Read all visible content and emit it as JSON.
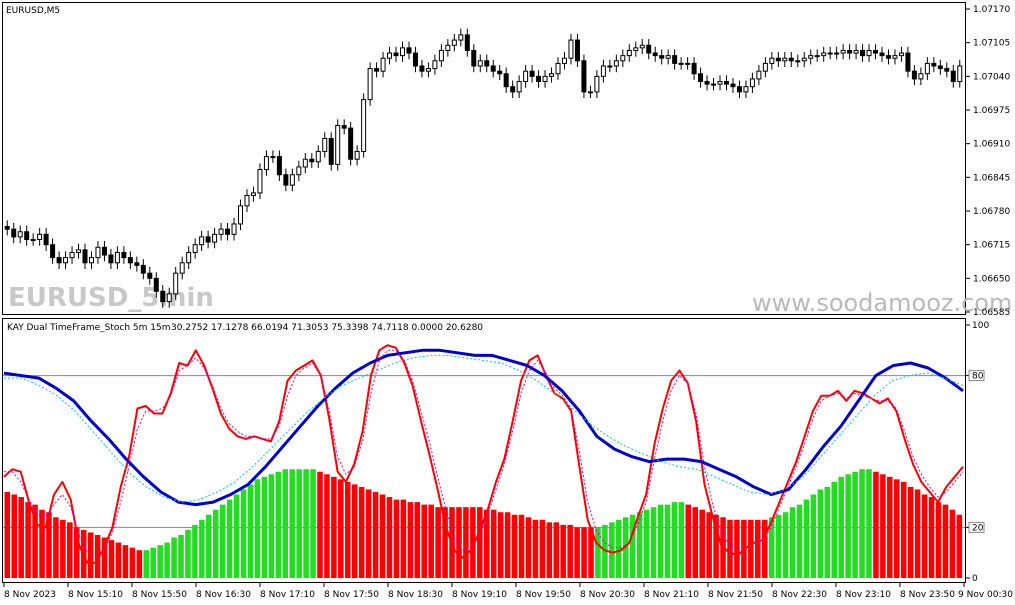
{
  "chart_data": [
    {
      "type": "candlestick",
      "symbol": "EURUSD,M5",
      "watermark": "EURUSD_5min",
      "site_watermark": "www.soodamooz.com",
      "y_ticks": [
        "1.07170",
        "1.07105",
        "1.07040",
        "1.06975",
        "1.06910",
        "1.06845",
        "1.06780",
        "1.06715",
        "1.06650",
        "1.06585"
      ],
      "ylim": [
        1.06585,
        1.0717
      ],
      "up_color": "#ffffff",
      "down_color": "#000000",
      "close": [
        1.06745,
        1.0673,
        1.0674,
        1.06725,
        1.06725,
        1.06735,
        1.06715,
        1.0669,
        1.0668,
        1.0669,
        1.067,
        1.06705,
        1.0668,
        1.0669,
        1.0671,
        1.06695,
        1.0668,
        1.067,
        1.0669,
        1.0668,
        1.06675,
        1.0666,
        1.0665,
        1.06625,
        1.06605,
        1.0662,
        1.0666,
        1.0668,
        1.067,
        1.06715,
        1.0673,
        1.0672,
        1.06735,
        1.06745,
        1.06735,
        1.06755,
        1.0679,
        1.0681,
        1.06815,
        1.0686,
        1.06885,
        1.06885,
        1.0685,
        1.0683,
        1.0685,
        1.06865,
        1.0688,
        1.06875,
        1.06895,
        1.0692,
        1.0687,
        1.06945,
        1.0694,
        1.0688,
        1.06895,
        1.06995,
        1.07055,
        1.0705,
        1.07075,
        1.07085,
        1.0708,
        1.07095,
        1.07085,
        1.0706,
        1.0705,
        1.07055,
        1.0707,
        1.0709,
        1.071,
        1.0711,
        1.0712,
        1.0709,
        1.0706,
        1.0707,
        1.0706,
        1.0705,
        1.07045,
        1.0702,
        1.0701,
        1.0703,
        1.0705,
        1.0704,
        1.0703,
        1.0704,
        1.07045,
        1.07065,
        1.07075,
        1.0711,
        1.0707,
        1.0701,
        1.0701,
        1.0704,
        1.0706,
        1.0706,
        1.0707,
        1.0708,
        1.0709,
        1.07095,
        1.071,
        1.07085,
        1.0708,
        1.07075,
        1.0708,
        1.07065,
        1.07065,
        1.07065,
        1.07045,
        1.0703,
        1.07025,
        1.07025,
        1.0703,
        1.07025,
        1.0702,
        1.0701,
        1.0702,
        1.07035,
        1.0705,
        1.07065,
        1.07075,
        1.0707,
        1.07075,
        1.0707,
        1.0707,
        1.07075,
        1.0708,
        1.0708,
        1.07085,
        1.07085,
        1.07085,
        1.0709,
        1.07085,
        1.0709,
        1.0708,
        1.0709,
        1.07085,
        1.0708,
        1.07075,
        1.0708,
        1.07085,
        1.0705,
        1.07035,
        1.07045,
        1.07065,
        1.0706,
        1.07055,
        1.0705,
        1.0703,
        1.0706
      ]
    },
    {
      "type": "line",
      "title": "KAY Dual TimeFrame_Stoch 5m 15m",
      "values_text": "30.2752 17.1278 66.0194 71.3053 75.3398 74.7118 0.0000 20.6280",
      "y_ticks": [
        "100",
        "80",
        "20",
        "0"
      ],
      "levels": [
        80,
        20
      ],
      "ylim": [
        0,
        100
      ],
      "x_ticks": [
        "8 Nov 2023",
        "8 Nov 15:10",
        "8 Nov 15:50",
        "8 Nov 16:30",
        "8 Nov 17:10",
        "8 Nov 17:50",
        "8 Nov 18:30",
        "8 Nov 19:10",
        "8 Nov 19:50",
        "8 Nov 20:30",
        "8 Nov 21:10",
        "8 Nov 21:50",
        "8 Nov 22:30",
        "8 Nov 23:10",
        "8 Nov 23:50",
        "9 Nov 00:30"
      ],
      "series": [
        {
          "color": "#ff0000",
          "values": [
            40,
            43,
            42,
            30,
            21,
            20,
            33,
            38,
            31,
            13,
            6,
            6,
            12,
            20,
            36,
            48,
            67,
            68,
            65,
            65,
            73,
            85,
            84,
            90,
            84,
            75,
            65,
            59,
            56,
            55,
            56,
            55,
            54,
            62,
            78,
            82,
            84,
            86,
            80,
            63,
            42,
            38,
            45,
            58,
            80,
            90,
            92,
            91,
            85,
            76,
            62,
            49,
            35,
            20,
            11,
            8,
            11,
            18,
            27,
            38,
            47,
            62,
            78,
            86,
            88,
            80,
            73,
            71,
            66,
            44,
            23,
            14,
            11,
            10,
            11,
            14,
            24,
            33,
            53,
            67,
            78,
            82,
            77,
            62,
            37,
            24,
            13,
            10,
            9,
            12,
            14,
            15,
            22,
            30,
            38,
            46,
            56,
            66,
            72,
            72,
            74,
            70,
            74,
            73,
            71,
            69,
            71,
            66,
            55,
            45,
            38,
            34,
            30,
            36,
            40,
            44
          ]
        },
        {
          "color": "#0000cc",
          "values": [
            81,
            80,
            79,
            75,
            70,
            62,
            55,
            47,
            40,
            34,
            30,
            29,
            30,
            33,
            37,
            44,
            52,
            60,
            68,
            75,
            81,
            85,
            88,
            89,
            90,
            90,
            89,
            88,
            88,
            86,
            84,
            80,
            74,
            66,
            56,
            51,
            48,
            46,
            47,
            47,
            46,
            43,
            40,
            36,
            33,
            35,
            43,
            52,
            60,
            70,
            80,
            84,
            85,
            83,
            79,
            74
          ]
        },
        {
          "color": "#00cccc",
          "dashed": true,
          "values": [
            79,
            79,
            76,
            72,
            66,
            58,
            50,
            42,
            36,
            32,
            30,
            31,
            34,
            38,
            44,
            51,
            58,
            65,
            71,
            76,
            79,
            82,
            85,
            87,
            88,
            88,
            87,
            86,
            85,
            82,
            78,
            73,
            67,
            61,
            56,
            52,
            49,
            46,
            44,
            43,
            40,
            37,
            34,
            33,
            35,
            40,
            48,
            56,
            64,
            72,
            78,
            80,
            81,
            79,
            76
          ]
        },
        {
          "color": "#cc00cc",
          "dashed": true,
          "values": [
            42,
            42,
            38,
            31,
            25,
            24,
            29,
            33,
            28,
            17,
            10,
            8,
            11,
            18,
            30,
            44,
            59,
            66,
            66,
            67,
            72,
            82,
            84,
            87,
            83,
            76,
            67,
            61,
            58,
            56,
            56,
            55,
            55,
            60,
            72,
            80,
            83,
            85,
            80,
            66,
            48,
            41,
            44,
            54,
            73,
            86,
            90,
            90,
            86,
            78,
            66,
            54,
            40,
            27,
            16,
            11,
            12,
            17,
            25,
            35,
            45,
            58,
            73,
            82,
            86,
            81,
            75,
            72,
            67,
            50,
            30,
            19,
            14,
            12,
            12,
            14,
            21,
            30,
            47,
            62,
            74,
            80,
            77,
            65,
            44,
            29,
            18,
            13,
            11,
            12,
            14,
            15,
            20,
            28,
            36,
            44,
            53,
            63,
            70,
            72,
            73,
            71,
            73,
            72,
            71,
            70,
            70,
            67,
            58,
            48,
            41,
            36,
            32,
            34,
            38,
            42
          ]
        }
      ]
    },
    {
      "type": "bar",
      "ylim": [
        0,
        100
      ],
      "colors": {
        "rising": "#22dd22",
        "falling": "#ff0000"
      },
      "values": [
        34,
        33,
        32,
        30,
        29,
        27,
        26,
        24,
        23,
        22,
        20,
        19,
        18,
        17,
        16,
        15,
        14,
        13,
        12,
        11,
        11,
        12,
        13,
        14,
        16,
        17,
        19,
        21,
        23,
        25,
        27,
        29,
        31,
        33,
        35,
        37,
        39,
        40,
        41,
        42,
        43,
        43,
        43,
        43,
        43,
        42,
        41,
        40,
        39,
        38,
        37,
        36,
        35,
        34,
        33,
        32,
        31,
        31,
        30,
        30,
        29,
        29,
        28,
        28,
        28,
        28,
        28,
        28,
        28,
        27,
        27,
        26,
        26,
        25,
        25,
        24,
        23,
        23,
        22,
        22,
        21,
        21,
        20,
        20,
        20,
        20,
        21,
        22,
        23,
        24,
        25,
        26,
        27,
        28,
        29,
        29,
        30,
        30,
        29,
        28,
        27,
        26,
        25,
        24,
        23,
        23,
        23,
        23,
        23,
        23,
        24,
        25,
        26,
        28,
        29,
        31,
        33,
        35,
        36,
        38,
        40,
        41,
        42,
        43,
        43,
        42,
        41,
        40,
        39,
        38,
        36,
        35,
        33,
        32,
        30,
        29,
        27,
        25
      ],
      "direction": [
        "d",
        "d",
        "d",
        "d",
        "d",
        "d",
        "d",
        "d",
        "d",
        "d",
        "d",
        "d",
        "d",
        "d",
        "d",
        "d",
        "d",
        "d",
        "d",
        "d",
        "u",
        "u",
        "u",
        "u",
        "u",
        "u",
        "u",
        "u",
        "u",
        "u",
        "u",
        "u",
        "u",
        "u",
        "u",
        "u",
        "u",
        "u",
        "u",
        "u",
        "u",
        "u",
        "u",
        "u",
        "u",
        "d",
        "d",
        "d",
        "d",
        "d",
        "d",
        "d",
        "d",
        "d",
        "d",
        "d",
        "d",
        "d",
        "d",
        "d",
        "d",
        "d",
        "d",
        "d",
        "d",
        "d",
        "d",
        "d",
        "d",
        "d",
        "d",
        "d",
        "d",
        "d",
        "d",
        "d",
        "d",
        "d",
        "d",
        "d",
        "d",
        "d",
        "d",
        "d",
        "d",
        "u",
        "u",
        "u",
        "u",
        "u",
        "u",
        "u",
        "u",
        "u",
        "u",
        "u",
        "u",
        "u",
        "d",
        "d",
        "d",
        "d",
        "d",
        "d",
        "d",
        "d",
        "d",
        "d",
        "d",
        "d",
        "u",
        "u",
        "u",
        "u",
        "u",
        "u",
        "u",
        "u",
        "u",
        "u",
        "u",
        "u",
        "u",
        "u",
        "u",
        "d",
        "d",
        "d",
        "d",
        "d",
        "d",
        "d",
        "d",
        "d",
        "d",
        "d",
        "d",
        "d"
      ]
    }
  ]
}
